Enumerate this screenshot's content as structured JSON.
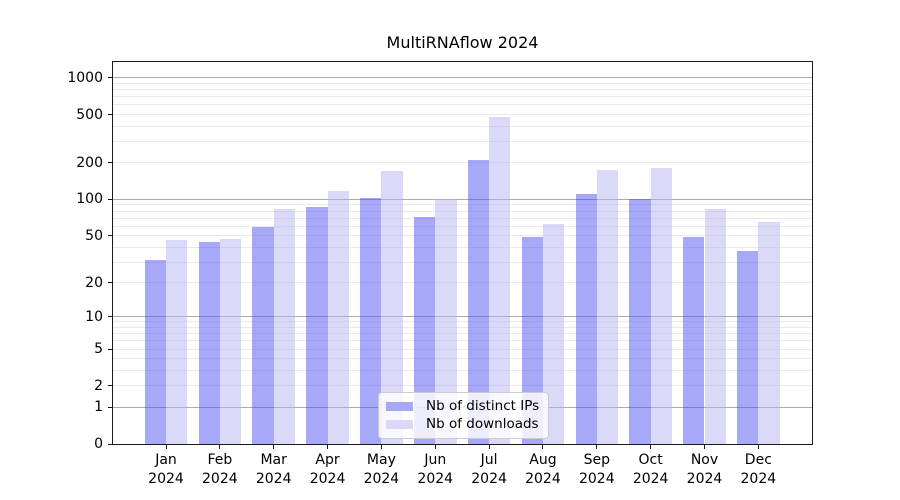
{
  "title": "MultiRNAflow 2024",
  "chart_data": {
    "type": "bar",
    "title": "MultiRNAflow 2024",
    "categories": [
      "Jan",
      "Feb",
      "Mar",
      "Apr",
      "May",
      "Jun",
      "Jul",
      "Aug",
      "Sep",
      "Oct",
      "Nov",
      "Dec"
    ],
    "category_year": "2024",
    "series": [
      {
        "name": "Nb of distinct IPs",
        "legend_color": "#a8a8f8",
        "fill": "rgba(74,74,240,0.48)",
        "values": [
          31,
          44,
          59,
          87,
          102,
          72,
          211,
          49,
          111,
          100,
          49,
          37
        ]
      },
      {
        "name": "Nb of downloads",
        "legend_color": "#dadaf8",
        "fill": "rgba(178,178,240,0.48)",
        "values": [
          46,
          47,
          84,
          117,
          173,
          101,
          475,
          63,
          174,
          183,
          83,
          65
        ]
      }
    ],
    "xlabel": "",
    "ylabel": "",
    "y_axis": {
      "scale": "log1p",
      "ticks": [
        0,
        1,
        2,
        5,
        10,
        20,
        50,
        100,
        200,
        500,
        1000
      ],
      "major_gridlines": [
        1,
        10,
        100,
        1000
      ],
      "minor_gridlines": [
        2,
        3,
        4,
        5,
        6,
        7,
        8,
        9,
        20,
        30,
        40,
        50,
        60,
        70,
        80,
        90,
        200,
        300,
        400,
        500,
        600,
        700,
        800,
        900
      ],
      "ylim": [
        0,
        1350
      ]
    },
    "legend_position": "lower center",
    "grid": true
  },
  "colors": {
    "major_grid": "#ababab",
    "minor_grid": "#eaeaea",
    "spine": "#1a1a1a",
    "background": "#ffffff"
  }
}
